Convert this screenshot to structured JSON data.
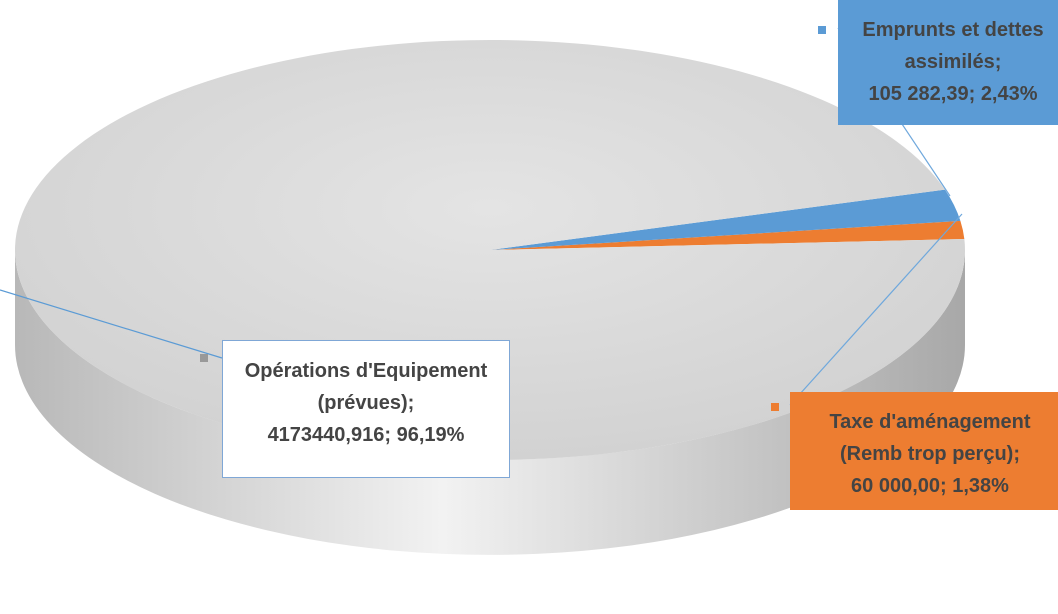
{
  "chart_data": {
    "type": "pie",
    "categories": [
      "Opérations d'Equipement (prévues)",
      "Emprunts et dettes assimilés",
      "Taxe d'aménagement (Remb trop perçu)"
    ],
    "values": [
      4173440.916,
      105282.39,
      60000
    ],
    "value_labels": [
      "4173440,916",
      "105 282,39",
      "60 000,00"
    ],
    "percents": [
      96.19,
      2.43,
      1.38
    ],
    "percent_labels": [
      "96,19%",
      "2,43%",
      "1,38%"
    ],
    "label_separator": ";",
    "colors": [
      "#d6d6d6",
      "#5b9bd5",
      "#ed7d31"
    ]
  }
}
